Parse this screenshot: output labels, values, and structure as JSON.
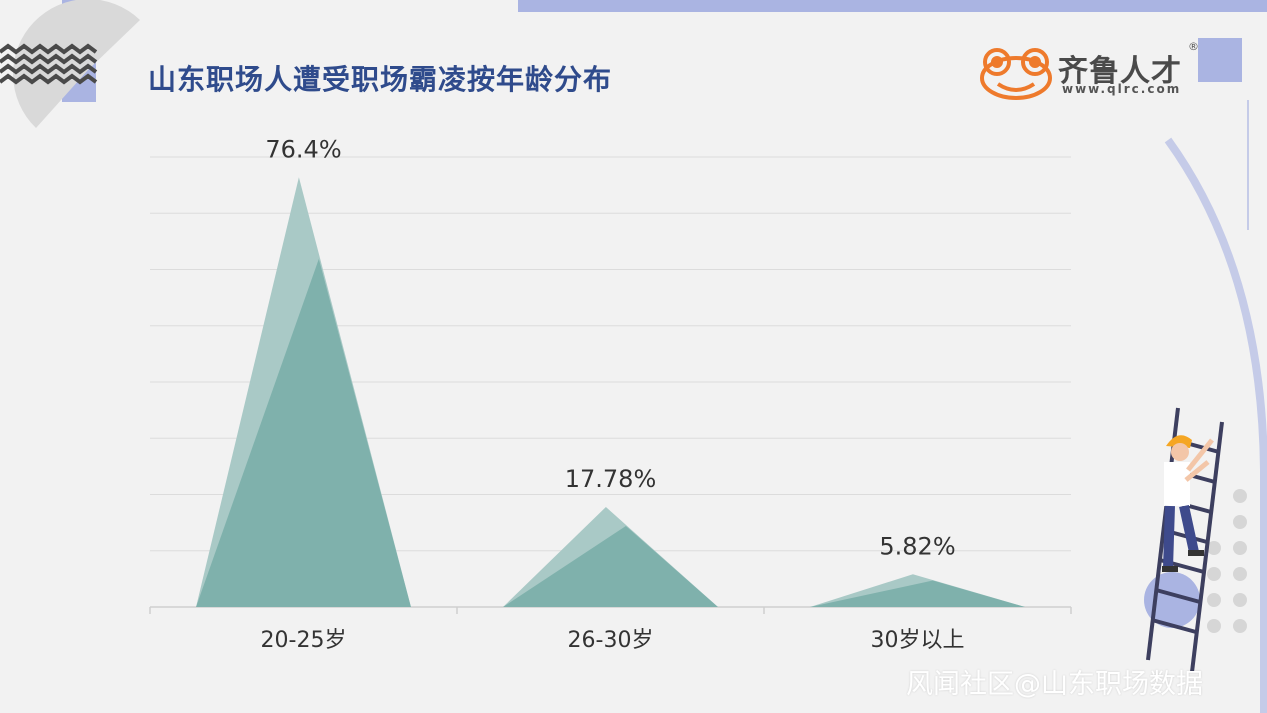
{
  "title": "山东职场人遭受职场霸凌按年龄分布",
  "logo": {
    "name": "齐鲁人才",
    "url": "www.qlrc.com",
    "mark": "®"
  },
  "watermark": "风闻社区@山东职场数据",
  "colors": {
    "accent": "#aab4e2",
    "title": "#2f4b8c",
    "peak_light": "#a9c9c6",
    "peak_dark": "#7fb1ac",
    "logo_orange": "#ee7a2c"
  },
  "chart_data": {
    "type": "bar",
    "style": "triangle-peaks",
    "categories": [
      "20-25岁",
      "26-30岁",
      "30岁以上"
    ],
    "values": [
      76.4,
      17.78,
      5.82
    ],
    "value_labels": [
      "76.4%",
      "17.78%",
      "5.82%"
    ],
    "ylim": [
      0,
      80
    ],
    "grid": true,
    "legend": "none"
  }
}
